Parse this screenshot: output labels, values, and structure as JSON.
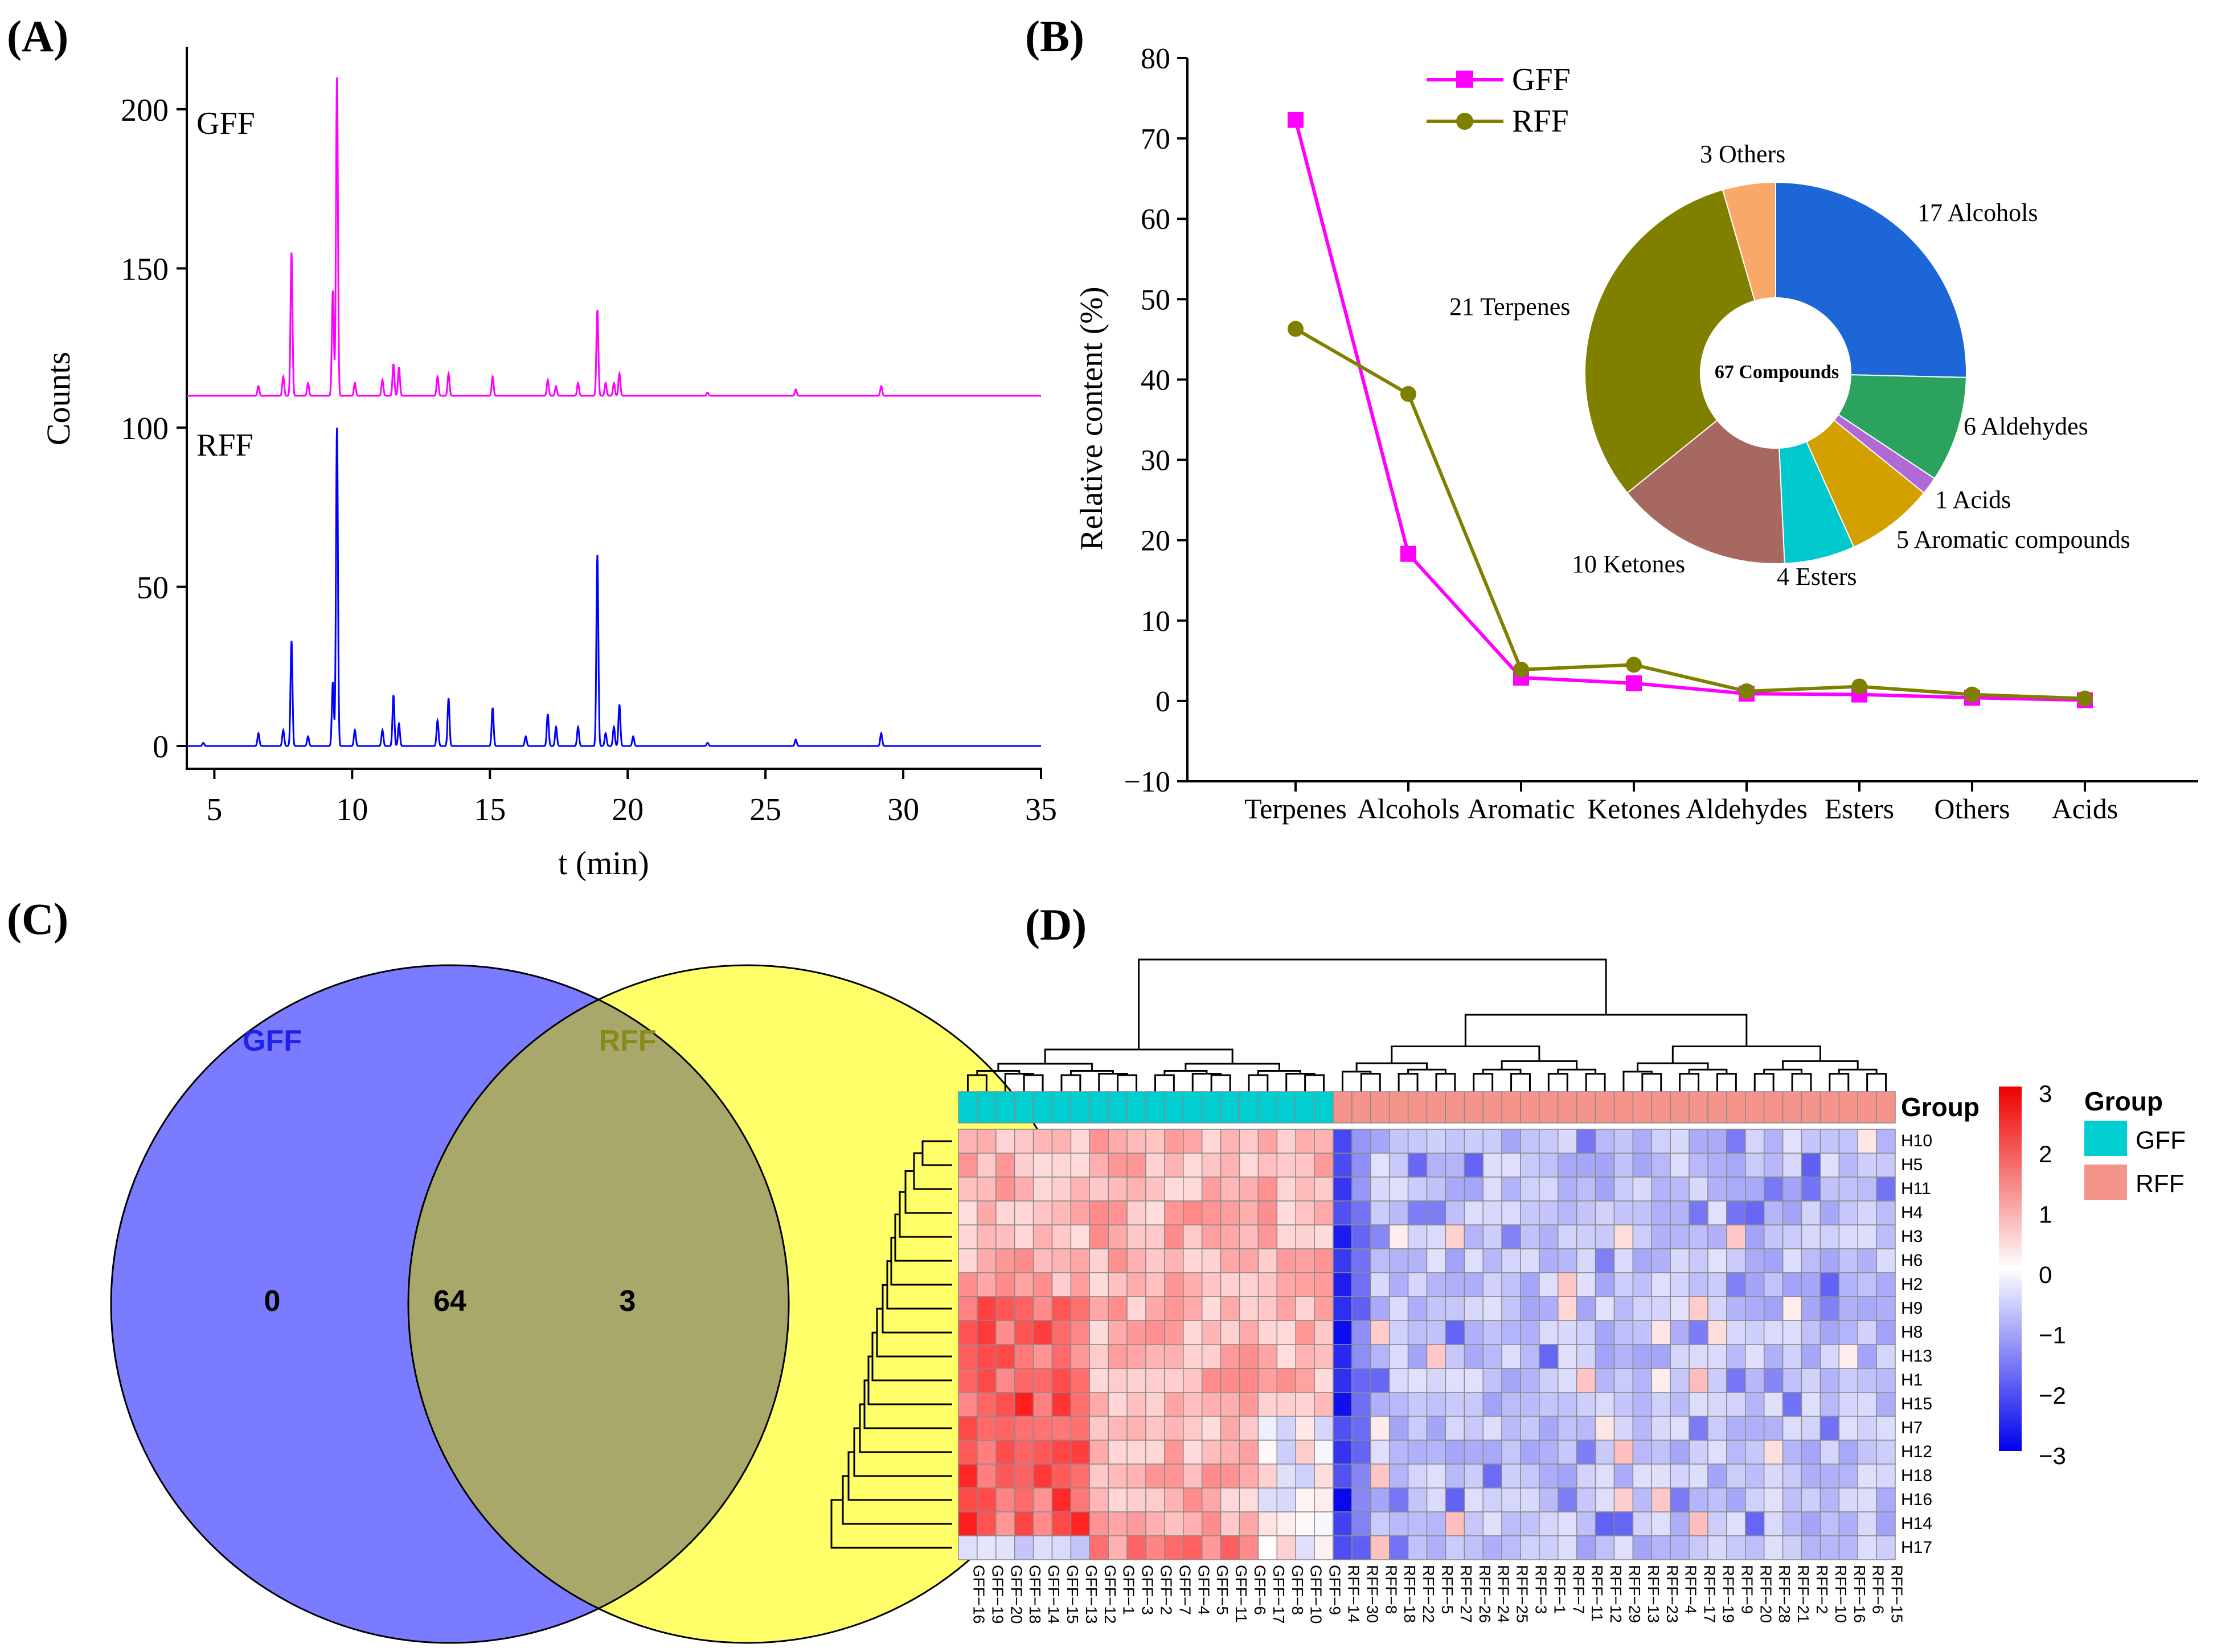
{
  "panels": {
    "a": {
      "label": "(A)"
    },
    "b": {
      "label": "(B)"
    },
    "c": {
      "label": "(C)"
    },
    "d": {
      "label": "(D)"
    }
  },
  "chart_data": [
    {
      "id": "A",
      "type": "line",
      "title": "",
      "xlabel": "t (min)",
      "ylabel": "Counts",
      "xlim": [
        4,
        35
      ],
      "ylim": [
        0,
        220
      ],
      "xticks": [
        5,
        10,
        15,
        20,
        25,
        30,
        35
      ],
      "yticks": [
        0,
        50,
        100,
        150,
        200
      ],
      "series": [
        {
          "name": "GFF",
          "color": "#ff00ff",
          "baseline": 110,
          "peaks": [
            [
              6.6,
              3
            ],
            [
              7.5,
              6
            ],
            [
              7.8,
              45
            ],
            [
              8.4,
              4
            ],
            [
              9.3,
              33
            ],
            [
              9.45,
              100
            ],
            [
              10.1,
              4
            ],
            [
              11.1,
              5
            ],
            [
              11.5,
              10
            ],
            [
              11.7,
              9
            ],
            [
              13.1,
              6
            ],
            [
              13.5,
              7
            ],
            [
              15.1,
              6
            ],
            [
              17.1,
              5
            ],
            [
              17.4,
              3
            ],
            [
              18.2,
              4
            ],
            [
              18.9,
              27
            ],
            [
              19.2,
              4
            ],
            [
              19.5,
              4
            ],
            [
              19.7,
              7
            ],
            [
              22.9,
              1
            ],
            [
              26.1,
              2
            ],
            [
              29.2,
              3
            ]
          ]
        },
        {
          "name": "RFF",
          "color": "#0000ff",
          "baseline": 0,
          "peaks": [
            [
              4.6,
              1
            ],
            [
              6.6,
              4
            ],
            [
              7.5,
              5
            ],
            [
              7.8,
              33
            ],
            [
              8.4,
              3
            ],
            [
              9.3,
              20
            ],
            [
              9.45,
              100
            ],
            [
              10.1,
              5
            ],
            [
              11.1,
              5
            ],
            [
              11.5,
              16
            ],
            [
              11.7,
              7
            ],
            [
              13.1,
              8
            ],
            [
              13.5,
              15
            ],
            [
              15.1,
              12
            ],
            [
              16.3,
              3
            ],
            [
              17.1,
              10
            ],
            [
              17.4,
              6
            ],
            [
              18.2,
              6
            ],
            [
              18.9,
              60
            ],
            [
              19.2,
              4
            ],
            [
              19.5,
              6
            ],
            [
              19.7,
              13
            ],
            [
              20.2,
              3
            ],
            [
              22.9,
              1
            ],
            [
              26.1,
              2
            ],
            [
              29.2,
              4
            ]
          ]
        }
      ]
    },
    {
      "id": "B",
      "type": "line",
      "title": "",
      "xlabel": "",
      "ylabel": "Relative content (%)",
      "ylim": [
        -10,
        80
      ],
      "yticks": [
        -10,
        0,
        10,
        20,
        30,
        40,
        50,
        60,
        70,
        80
      ],
      "categories": [
        "Terpenes",
        "Alcohols",
        "Aromatic",
        "Ketones",
        "Aldehydes",
        "Esters",
        "Others",
        "Acids"
      ],
      "legend": "top-left",
      "series": [
        {
          "name": "GFF",
          "color": "#ff00ff",
          "marker": "square",
          "values": [
            72.3,
            18.3,
            2.9,
            2.2,
            0.9,
            0.8,
            0.4,
            0.1
          ]
        },
        {
          "name": "RFF",
          "color": "#808000",
          "marker": "circle",
          "values": [
            46.3,
            38.2,
            3.9,
            4.5,
            1.2,
            1.8,
            0.8,
            0.3
          ]
        }
      ]
    },
    {
      "id": "B-inset",
      "type": "pie",
      "center_label": "67 Compounds",
      "slices": [
        {
          "label": "17 Alcohols",
          "value": 17,
          "color": "#1c66d8"
        },
        {
          "label": "6 Aldehydes",
          "value": 6,
          "color": "#2ca25f"
        },
        {
          "label": "1 Acids",
          "value": 1,
          "color": "#b069d6"
        },
        {
          "label": "5 Aromatic compounds",
          "value": 5,
          "color": "#d4a000"
        },
        {
          "label": "4 Esters",
          "value": 4,
          "color": "#00c8cc"
        },
        {
          "label": "10 Ketones",
          "value": 10,
          "color": "#a86862"
        },
        {
          "label": "21 Terpenes",
          "value": 21,
          "color": "#808000"
        },
        {
          "label": "3 Others",
          "value": 3,
          "color": "#f9a86a"
        }
      ]
    },
    {
      "id": "C",
      "type": "venn",
      "sets": [
        {
          "name": "GFF",
          "only": "0",
          "color": "#7b7bff",
          "label_color": "#2020ee"
        },
        {
          "name": "RFF",
          "only": "3",
          "color": "#ffff6a",
          "label_color": "#8a8a1c"
        }
      ],
      "intersection": "64",
      "intersection_color": "#a8a86a"
    },
    {
      "id": "D",
      "type": "heatmap",
      "group_title": "Group",
      "legend_title": "Group",
      "colorbar_ticks": [
        "3",
        "2",
        "1",
        "0",
        "−1",
        "−2",
        "−3"
      ],
      "colorbar_range": [
        -3,
        3
      ],
      "groups": [
        {
          "name": "GFF",
          "color": "#00ced1"
        },
        {
          "name": "RFF",
          "color": "#f4948a"
        }
      ],
      "columns": [
        "GFF−16",
        "GFF−19",
        "GFF−20",
        "GFF−18",
        "GFF−14",
        "GFF−15",
        "GFF−13",
        "GFF−12",
        "GFF−1",
        "GFF−3",
        "GFF−2",
        "GFF−7",
        "GFF−4",
        "GFF−5",
        "GFF−11",
        "GFF−6",
        "GFF−17",
        "GFF−8",
        "GFF−10",
        "GFF−9",
        "RFF−14",
        "RFF−30",
        "RFF−8",
        "RFF−18",
        "RFF−22",
        "RFF−5",
        "RFF−27",
        "RFF−26",
        "RFF−24",
        "RFF−25",
        "RFF−3",
        "RFF−1",
        "RFF−7",
        "RFF−11",
        "RFF−12",
        "RFF−29",
        "RFF−13",
        "RFF−23",
        "RFF−4",
        "RFF−17",
        "RFF−19",
        "RFF−9",
        "RFF−20",
        "RFF−28",
        "RFF−21",
        "RFF−2",
        "RFF−10",
        "RFF−16",
        "RFF−6",
        "RFF−15"
      ],
      "rows": [
        "H10",
        "H5",
        "H11",
        "H4",
        "H3",
        "H6",
        "H2",
        "H9",
        "H8",
        "H13",
        "H1",
        "H15",
        "H7",
        "H12",
        "H18",
        "H16",
        "H14",
        "H17"
      ]
    }
  ]
}
